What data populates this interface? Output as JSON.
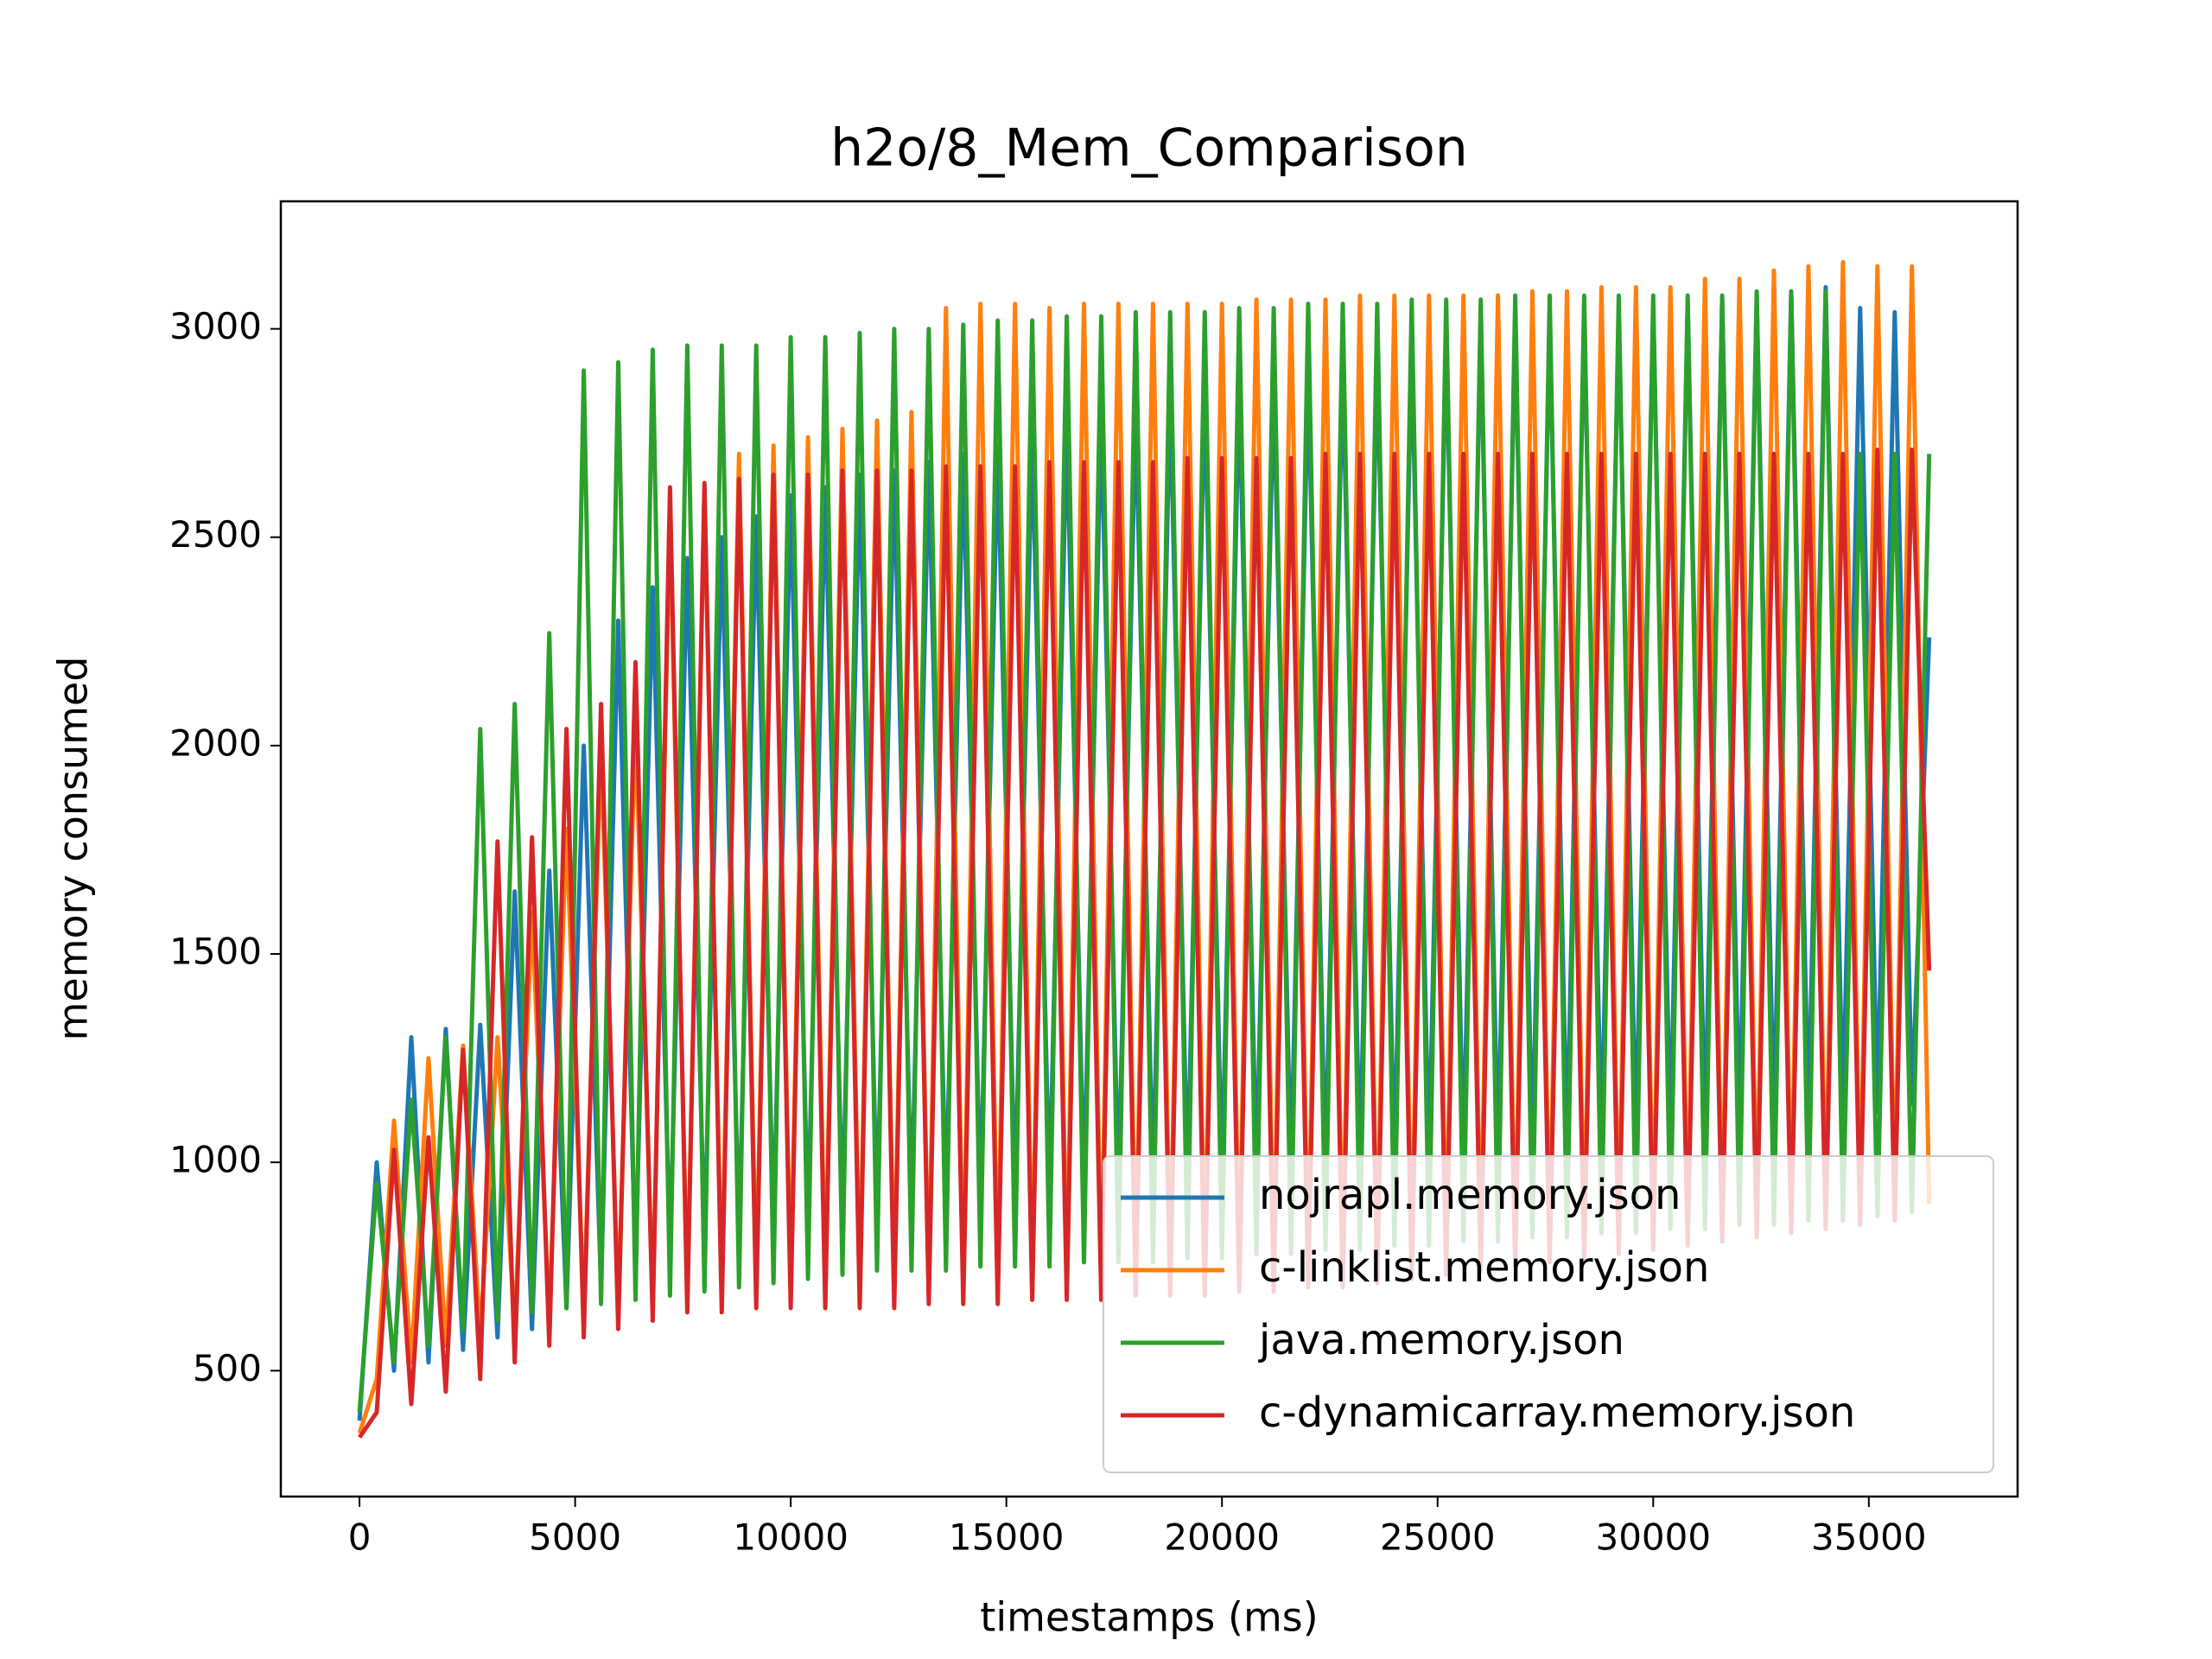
{
  "chart_data": {
    "type": "line",
    "title": "h2o/8_Mem_Comparison",
    "x_label": "timestamps (ms)",
    "y_label": "memory consumed",
    "x": [
      0,
      400,
      800,
      1200,
      1600,
      2000,
      2400,
      2800,
      3200,
      3600,
      4000,
      4400,
      4800,
      5200,
      5600,
      6000,
      6400,
      6800,
      7200,
      7600,
      8000,
      8400,
      8800,
      9200,
      9600,
      10000,
      10400,
      10800,
      11200,
      11600,
      12000,
      12400,
      12800,
      13200,
      13600,
      14000,
      14400,
      14800,
      15200,
      15600,
      16000,
      16400,
      16800,
      17200,
      17600,
      18000,
      18400,
      18800,
      19200,
      19600,
      20000,
      20400,
      20800,
      21200,
      21600,
      22000,
      22400,
      22800,
      23200,
      23600,
      24000,
      24400,
      24800,
      25200,
      25600,
      26000,
      26400,
      26800,
      27200,
      27600,
      28000,
      28400,
      28800,
      29200,
      29600,
      30000,
      30400,
      30800,
      31200,
      31600,
      32000,
      32400,
      32800,
      33200,
      33600,
      34000,
      34400,
      34800,
      35200,
      35600,
      36000,
      36400
    ],
    "series": [
      {
        "name": "nojrapl.memory.json",
        "color": "#1f77b4",
        "values": [
          380,
          1000,
          500,
          1300,
          520,
          1320,
          550,
          1330,
          580,
          1650,
          600,
          1700,
          650,
          2000,
          700,
          2300,
          750,
          2380,
          780,
          2450,
          800,
          2500,
          820,
          2550,
          840,
          2600,
          850,
          2620,
          860,
          2650,
          870,
          2660,
          880,
          2680,
          890,
          2700,
          900,
          2720,
          900,
          2750,
          910,
          2780,
          920,
          2800,
          920,
          2820,
          930,
          2850,
          940,
          2860,
          950,
          2870,
          960,
          2880,
          960,
          2900,
          970,
          2920,
          980,
          2940,
          980,
          2960,
          990,
          2980,
          1000,
          3000,
          1000,
          3010,
          1010,
          3020,
          1020,
          3030,
          1030,
          3040,
          1040,
          3050,
          1050,
          3060,
          1060,
          3070,
          1070,
          3080,
          1080,
          3090,
          1090,
          3100,
          1100,
          3050,
          1120,
          3040,
          1140,
          2260
        ]
      },
      {
        "name": "c-linklist.memory.json",
        "color": "#ff7f0e",
        "values": [
          350,
          480,
          1100,
          520,
          1250,
          560,
          1280,
          580,
          1300,
          600,
          1600,
          620,
          1800,
          640,
          2000,
          650,
          2050,
          660,
          2550,
          680,
          2600,
          690,
          2700,
          700,
          2720,
          700,
          2740,
          700,
          2760,
          700,
          2780,
          690,
          2800,
          680,
          3050,
          680,
          3060,
          690,
          3060,
          690,
          3050,
          700,
          3060,
          700,
          3060,
          710,
          3060,
          710,
          3060,
          720,
          3060,
          720,
          3070,
          730,
          3070,
          730,
          3070,
          740,
          3080,
          740,
          3080,
          750,
          3080,
          760,
          3080,
          770,
          3080,
          780,
          3090,
          790,
          3090,
          800,
          3100,
          810,
          3100,
          820,
          3100,
          830,
          3120,
          840,
          3120,
          850,
          3140,
          860,
          3150,
          870,
          3160,
          880,
          3150,
          890,
          3150,
          900
        ]
      },
      {
        "name": "java.memory.json",
        "color": "#2ca02c",
        "values": [
          400,
          950,
          520,
          1150,
          560,
          1300,
          600,
          2040,
          620,
          2100,
          640,
          2270,
          650,
          2900,
          660,
          2920,
          670,
          2950,
          680,
          2960,
          690,
          2960,
          700,
          2960,
          710,
          2980,
          720,
          2980,
          730,
          2990,
          740,
          3000,
          740,
          3000,
          740,
          3010,
          750,
          3020,
          750,
          3020,
          750,
          3030,
          760,
          3030,
          760,
          3040,
          760,
          3040,
          770,
          3040,
          770,
          3050,
          780,
          3050,
          780,
          3060,
          790,
          3060,
          790,
          3060,
          800,
          3070,
          800,
          3070,
          810,
          3070,
          810,
          3080,
          820,
          3080,
          820,
          3080,
          830,
          3080,
          830,
          3080,
          840,
          3080,
          840,
          3080,
          850,
          3090,
          850,
          3090,
          860,
          3090,
          860,
          2700,
          870,
          2700,
          880,
          2700
        ]
      },
      {
        "name": "c-dynamicarray.memory.json",
        "color": "#d62728",
        "values": [
          340,
          400,
          1030,
          420,
          1060,
          450,
          1270,
          480,
          1770,
          520,
          1780,
          560,
          2040,
          580,
          2100,
          600,
          2200,
          620,
          2620,
          640,
          2630,
          640,
          2640,
          650,
          2650,
          650,
          2650,
          650,
          2660,
          650,
          2660,
          650,
          2660,
          660,
          2670,
          660,
          2670,
          660,
          2670,
          670,
          2680,
          670,
          2680,
          670,
          2680,
          680,
          2680,
          680,
          2690,
          680,
          2690,
          690,
          2690,
          690,
          2690,
          700,
          2700,
          700,
          2700,
          710,
          2700,
          720,
          2700,
          730,
          2700,
          740,
          2700,
          750,
          2700,
          760,
          2700,
          770,
          2700,
          780,
          2700,
          790,
          2700,
          800,
          2700,
          810,
          2700,
          820,
          2700,
          830,
          2700,
          840,
          2700,
          850,
          2710,
          860,
          2710,
          1460
        ]
      }
    ],
    "xlim": [
      -1825,
      38450
    ],
    "ylim": [
      198,
      3306
    ],
    "xticks": [
      0,
      5000,
      10000,
      15000,
      20000,
      25000,
      30000,
      35000
    ],
    "yticks": [
      500,
      1000,
      1500,
      2000,
      2500,
      3000
    ],
    "legend": "lower right"
  }
}
